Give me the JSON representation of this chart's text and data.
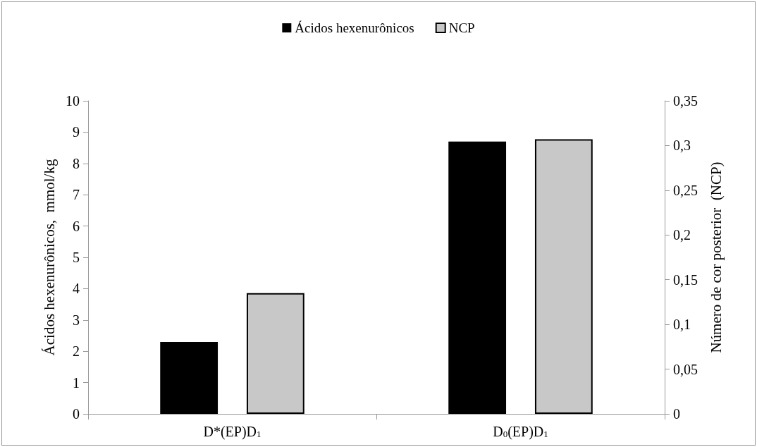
{
  "chart_data": {
    "type": "bar",
    "categories": [
      "D*(EP)D$_{1}$",
      "D$_{0}$(EP)D$_{1}$"
    ],
    "series": [
      {
        "name": "Ácidos hexenurônicos",
        "color": "#000000",
        "values": [
          2.3,
          8.7
        ]
      },
      {
        "name": "NCP",
        "color": "#c8c8c8",
        "values": [
          0.135,
          0.307
        ],
        "axis": "y2"
      }
    ],
    "ylabel": "Ácidos hexenurônicos,  mmol/kg",
    "y2label": "Número de cor posterior  (NCP)",
    "ylim": [
      0,
      10
    ],
    "yticks": [
      0,
      1,
      2,
      3,
      4,
      5,
      6,
      7,
      8,
      9,
      10
    ],
    "y2lim": [
      0,
      0.35
    ],
    "y2ticks": [
      {
        "value": 0,
        "label": "0"
      },
      {
        "value": 0.05,
        "label": "0,05"
      },
      {
        "value": 0.1,
        "label": "0,1"
      },
      {
        "value": 0.15,
        "label": "0,15"
      },
      {
        "value": 0.2,
        "label": "0,2"
      },
      {
        "value": 0.25,
        "label": "0,25"
      },
      {
        "value": 0.3,
        "label": "0,3"
      },
      {
        "value": 0.35,
        "label": "0,35"
      }
    ],
    "grid": false,
    "legend": "top"
  }
}
